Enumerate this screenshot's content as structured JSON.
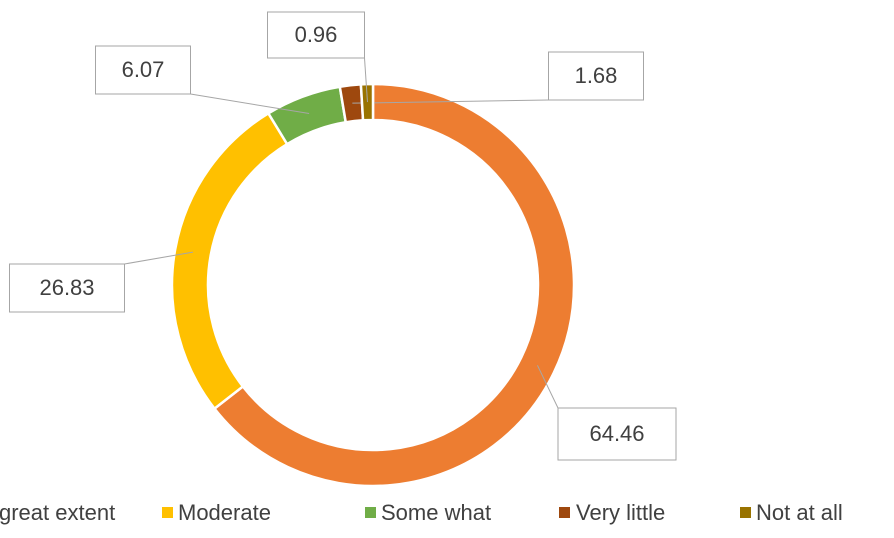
{
  "chart_data": {
    "type": "donut",
    "categories": [
      "great extent",
      "Moderate",
      "Some what",
      "Very little",
      "Not at all"
    ],
    "values": [
      64.46,
      26.83,
      6.07,
      1.68,
      0.96
    ],
    "colors": [
      "#ed7d31",
      "#ffc000",
      "#70ad47",
      "#9e480e",
      "#997300"
    ]
  }
}
